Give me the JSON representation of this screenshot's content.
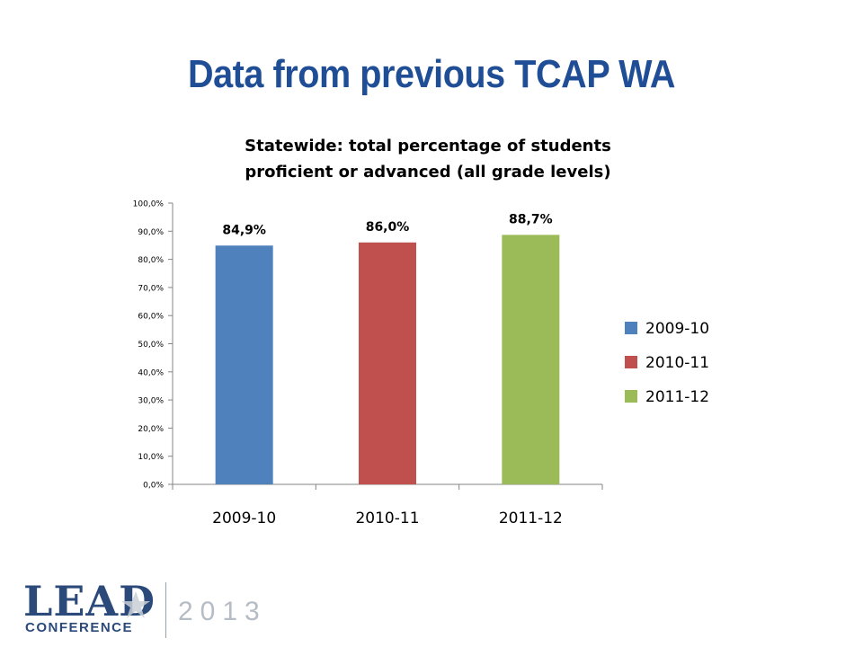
{
  "slide": {
    "title": "Data from previous TCAP WA"
  },
  "logo": {
    "lead": "LEAD",
    "conference": "CONFERENCE",
    "year": "2013"
  },
  "chart_data": {
    "type": "bar",
    "title_lines": [
      "Statewide: total percentage of students",
      "proficient or advanced (all grade levels)"
    ],
    "categories": [
      "2009-10",
      "2010-11",
      "2011-12"
    ],
    "values": [
      84.9,
      86.0,
      88.7
    ],
    "data_labels": [
      "84,9%",
      "86,0%",
      "88,7%"
    ],
    "colors": [
      "#4f81bd",
      "#c0504d",
      "#9bbb59"
    ],
    "ylim": [
      0,
      100
    ],
    "yticks": [
      0,
      10,
      20,
      30,
      40,
      50,
      60,
      70,
      80,
      90,
      100
    ],
    "ytick_labels": [
      "0,0%",
      "10,0%",
      "20,0%",
      "30,0%",
      "40,0%",
      "50,0%",
      "60,0%",
      "70,0%",
      "80,0%",
      "90,0%",
      "100,0%"
    ],
    "legend": {
      "placement": "right",
      "entries": [
        "2009-10",
        "2010-11",
        "2011-12"
      ]
    },
    "grid": false
  }
}
